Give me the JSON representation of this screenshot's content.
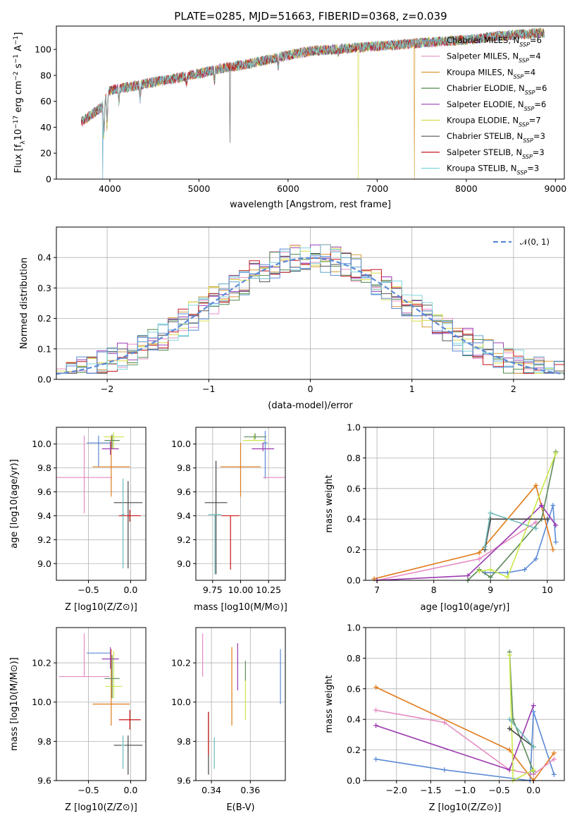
{
  "title": "PLATE=0285, MJD=51663, FIBERID=0368, z=0.039",
  "colors": {
    "Chabrier MILES": "#5fa7c8",
    "Salpeter MILES": "#e88fc4",
    "Kroupa MILES": "#d89b3a",
    "Chabrier ELODIE": "#4f8a4f",
    "Salpeter ELODIE": "#9b3fb5",
    "Kroupa ELODIE": "#d6dc4a",
    "Chabrier STELIB": "#555555",
    "Salpeter STELIB": "#c4141c",
    "Kroupa STELIB": "#7fd6dc",
    "mw_blue": "#5b8ad6",
    "mw_orange": "#e07b1a",
    "mw_pink": "#e58ac2",
    "mw_purple": "#9b38b0",
    "mw_green": "#5d8a5a",
    "mw_yellow": "#c9e84a",
    "mw_dark": "#444444",
    "mw_teal": "#6fb8b8",
    "mw_red": "#c81414",
    "gaussian": "#5b8ad6"
  },
  "chart_data": [
    {
      "id": "spectrum",
      "type": "line",
      "title": "PLATE=0285, MJD=51663, FIBERID=0368, z=0.039",
      "xlabel": "wavelength [Angstrom, rest frame]",
      "ylabel": "Flux [f",
      "xlim": [
        3400,
        9100
      ],
      "ylim": [
        0,
        118
      ],
      "xticks": [
        "4000",
        "5000",
        "6000",
        "7000",
        "8000",
        "9000"
      ],
      "yticks": [
        "0",
        "20",
        "40",
        "60",
        "80",
        "100"
      ],
      "legend_position": "top-right",
      "continuum_x": [
        3700,
        3800,
        3900,
        4000,
        4100,
        4300,
        4500,
        4700,
        4900,
        5100,
        5300,
        5500,
        5700,
        5900,
        6100,
        6300,
        6500,
        6700,
        6900,
        7100,
        7300,
        7500,
        7700,
        7900,
        8100,
        8300,
        8500,
        8700,
        8900
      ],
      "continuum_y": [
        45,
        50,
        55,
        68,
        70,
        72,
        75,
        77,
        80,
        83,
        86,
        88,
        91,
        94,
        97,
        99,
        100,
        101,
        102,
        103,
        104,
        105,
        106,
        107,
        108,
        110,
        111,
        112,
        113
      ],
      "series": [
        {
          "name": "Chabrier MILES",
          "n": "6"
        },
        {
          "name": "Salpeter MILES",
          "n": "4"
        },
        {
          "name": "Kroupa MILES",
          "n": "4"
        },
        {
          "name": "Chabrier ELODIE",
          "n": "6"
        },
        {
          "name": "Salpeter ELODIE",
          "n": "6"
        },
        {
          "name": "Kroupa ELODIE",
          "n": "7"
        },
        {
          "name": "Chabrier STELIB",
          "n": "3"
        },
        {
          "name": "Salpeter STELIB",
          "n": "3"
        },
        {
          "name": "Kroupa STELIB",
          "n": "3"
        }
      ]
    },
    {
      "id": "residuals",
      "type": "line",
      "xlabel": "(data-model)/error",
      "ylabel": "Normed distribution",
      "xlim": [
        -2.5,
        2.5
      ],
      "ylim": [
        0,
        0.5
      ],
      "xticks": [
        "−2",
        "−1",
        "0",
        "1",
        "2"
      ],
      "yticks": [
        "0.0",
        "0.1",
        "0.2",
        "0.3",
        "0.4"
      ],
      "grid": true,
      "legend_position": "top-right",
      "legend_label": "𝒩(0, 1)",
      "bin_width": 0.1
    },
    {
      "id": "age_vs_Z",
      "type": "scatter",
      "xlabel": "Z [log10(Z/Z⊙)]",
      "ylabel": "age  [log10(age/yr)]",
      "xlim": [
        -0.88,
        0.18
      ],
      "ylim": [
        8.86,
        10.14
      ],
      "xticks": [
        "−0.5",
        "0.0"
      ],
      "yticks": [
        "9.0",
        "9.2",
        "9.4",
        "9.6",
        "9.8",
        "10.0"
      ],
      "grid": true,
      "points": [
        {
          "x": -0.38,
          "y": 10.01,
          "xerr": 0.14,
          "ylo": 0.2,
          "yhi": 0.06
        },
        {
          "x": -0.55,
          "y": 9.72,
          "xerr": 0.33,
          "ylo": 0.3,
          "yhi": 0.35
        },
        {
          "x": -0.23,
          "y": 9.81,
          "xerr": 0.22,
          "ylo": 0.25,
          "yhi": 0.26
        },
        {
          "x": -0.2,
          "y": 10.06,
          "xerr": 0.12,
          "ylo": 0.1,
          "yhi": 0.04
        },
        {
          "x": -0.24,
          "y": 9.96,
          "xerr": 0.1,
          "ylo": 0.05,
          "yhi": 0.06
        },
        {
          "x": -0.22,
          "y": 10.03,
          "xerr": 0.09,
          "ylo": 0.07,
          "yhi": 0.05
        },
        {
          "x": -0.03,
          "y": 9.51,
          "xerr": 0.17,
          "ylo": 0.55,
          "yhi": 0.18
        },
        {
          "x": -0.01,
          "y": 9.4,
          "xerr": 0.13,
          "ylo": 0.05,
          "yhi": 0.05
        },
        {
          "x": -0.09,
          "y": 9.41,
          "xerr": 0.02,
          "ylo": 0.45,
          "yhi": 0.3
        }
      ]
    },
    {
      "id": "age_vs_mass",
      "type": "scatter",
      "xlabel": "mass [log10(M/M⊙)]",
      "xlim": [
        9.6,
        10.4
      ],
      "ylim": [
        8.86,
        10.14
      ],
      "xticks": [
        "9.75",
        "10.00",
        "10.25"
      ],
      "yticks": [
        "9.0",
        "9.2",
        "9.4",
        "9.6",
        "9.8",
        "10.0"
      ],
      "grid": true
    },
    {
      "id": "mass_weight_vs_age",
      "type": "line",
      "xlabel": "age  [log10(age/yr)]",
      "ylabel": "mass weight",
      "xlim": [
        6.8,
        10.3
      ],
      "ylim": [
        0,
        1
      ],
      "xticks": [
        "7",
        "8",
        "9",
        "10"
      ],
      "yticks": [
        "0.0",
        "0.2",
        "0.4",
        "0.6",
        "0.8",
        "1.0"
      ],
      "grid": true,
      "series": [
        {
          "x": [
            8.9,
            9.3,
            9.6,
            9.8,
            10.1,
            10.15
          ],
          "y": [
            0.05,
            0.05,
            0.07,
            0.14,
            0.49,
            0.25
          ]
        },
        {
          "x": [
            6.95,
            8.8,
            9.8,
            10.1
          ],
          "y": [
            0.01,
            0.18,
            0.62,
            0.2
          ]
        },
        {
          "x": [
            7.0,
            8.8,
            9.8
          ],
          "y": [
            0.0,
            0.14,
            0.38
          ]
        },
        {
          "x": [
            7.0,
            8.6,
            9.9,
            10.15
          ],
          "y": [
            0.0,
            0.03,
            0.49,
            0.36
          ]
        },
        {
          "x": [
            8.6,
            8.8,
            9.0,
            9.9,
            10.15
          ],
          "y": [
            0.0,
            0.07,
            0.02,
            0.4,
            0.84
          ]
        },
        {
          "x": [
            8.8,
            9.0,
            9.3,
            10.15
          ],
          "y": [
            0.06,
            0.07,
            0.02,
            0.83
          ]
        },
        {
          "x": [
            8.9,
            9.0,
            10.0
          ],
          "y": [
            0.2,
            0.4,
            0.4
          ]
        },
        {
          "x": [
            8.9,
            9.0,
            9.8
          ],
          "y": [
            0.22,
            0.44,
            0.34
          ]
        }
      ]
    },
    {
      "id": "mass_vs_Z",
      "type": "scatter",
      "xlabel": "Z [log10(Z/Z⊙)]",
      "ylabel": "mass [log10(M/M⊙)]",
      "xlim": [
        -0.88,
        0.18
      ],
      "ylim": [
        9.6,
        10.38
      ],
      "xticks": [
        "−0.5",
        "0.0"
      ],
      "yticks": [
        "9.6",
        "9.8",
        "10.0",
        "10.2"
      ],
      "grid": true
    },
    {
      "id": "mass_vs_ebv",
      "type": "scatter",
      "xlabel": "E(B-V)",
      "xlim": [
        0.332,
        0.378
      ],
      "ylim": [
        9.6,
        10.38
      ],
      "xticks": [
        "0.34",
        "0.36"
      ],
      "yticks": [
        "9.6",
        "9.8",
        "10.0",
        "10.2"
      ],
      "grid": true
    },
    {
      "id": "mass_weight_vs_Z",
      "type": "line",
      "xlabel": "Z [log10(Z/Z⊙)]",
      "ylabel": "mass weight",
      "xlim": [
        -2.45,
        0.45
      ],
      "ylim": [
        0,
        1
      ],
      "xticks": [
        "−2.0",
        "−1.5",
        "−1.0",
        "−0.5",
        "0.0"
      ],
      "yticks": [
        "0.0",
        "0.2",
        "0.4",
        "0.6",
        "0.8",
        "1.0"
      ],
      "grid": true,
      "series": [
        {
          "x": [
            -2.3,
            -1.3,
            -0.05,
            0.0,
            0.3
          ],
          "y": [
            0.14,
            0.07,
            0.0,
            0.45,
            0.04
          ]
        },
        {
          "x": [
            -2.3,
            -0.35,
            0.0,
            0.3
          ],
          "y": [
            0.61,
            0.2,
            0.0,
            0.18
          ]
        },
        {
          "x": [
            -2.3,
            -1.3,
            -0.35,
            0.0,
            0.3
          ],
          "y": [
            0.46,
            0.38,
            0.07,
            0.04,
            0.14
          ]
        },
        {
          "x": [
            -2.3,
            -0.35,
            0.0
          ],
          "y": [
            0.36,
            0.07,
            0.49
          ]
        },
        {
          "x": [
            -0.35,
            -0.3,
            0.0
          ],
          "y": [
            0.84,
            0.4,
            0.06
          ]
        },
        {
          "x": [
            -0.35,
            -0.3,
            -0.3,
            0.0
          ],
          "y": [
            0.82,
            0.07,
            0.0,
            0.07
          ]
        },
        {
          "x": [
            -0.35,
            0.0
          ],
          "y": [
            0.34,
            0.22
          ]
        },
        {
          "x": [
            -0.35,
            0.0
          ],
          "y": [
            0.4,
            0.22
          ]
        }
      ]
    }
  ]
}
